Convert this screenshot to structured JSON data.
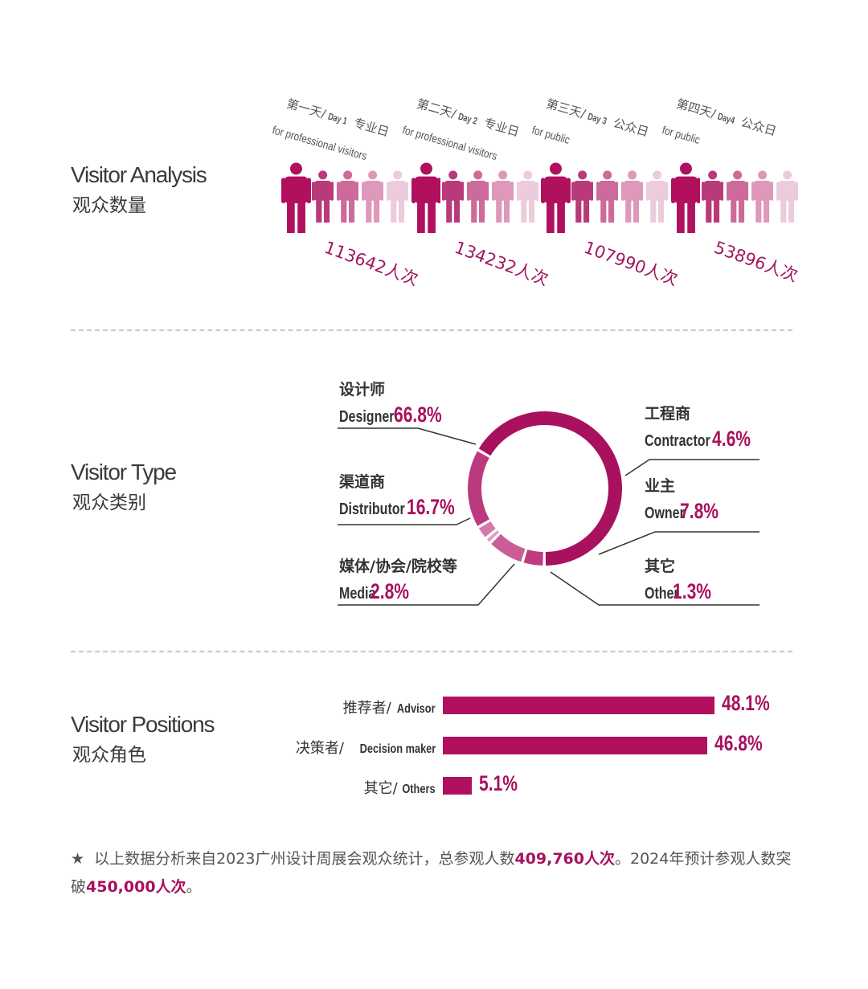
{
  "colors": {
    "accent": "#a8115e",
    "figures": [
      "#b0105e",
      "#b83a7a",
      "#cc6a9a",
      "#dd98ba",
      "#eccbdc"
    ],
    "donut": [
      "#a8115e",
      "#c03a80",
      "#cc5c95",
      "#e0a0c0",
      "#d479ab",
      "#bb3a7d"
    ]
  },
  "visitor_analysis": {
    "title": "Visitor Analysis",
    "subtitle": "观众数量"
  },
  "visitor_type": {
    "title": "Visitor Type",
    "subtitle": "观众类别"
  },
  "visitor_positions": {
    "title": "Visitor Positions",
    "subtitle": "观众角色"
  },
  "chart_data": [
    {
      "type": "pictogram",
      "days": [
        {
          "cn": "第一天/",
          "day": "Day 1",
          "type_cn": "专业日",
          "type_en": "for professional visitors",
          "count": 113642,
          "count_label": "113642人次"
        },
        {
          "cn": "第二天/",
          "day": "Day 2",
          "type_cn": "专业日",
          "type_en": "for professional visitors",
          "count": 134232,
          "count_label": "134232人次"
        },
        {
          "cn": "第三天/",
          "day": "Day 3",
          "type_cn": "公众日",
          "type_en": "for public",
          "count": 107990,
          "count_label": "107990人次"
        },
        {
          "cn": "第四天/",
          "day": "Day4",
          "type_cn": "公众日",
          "type_en": "for public",
          "count": 53896,
          "count_label": "53896人次"
        }
      ]
    },
    {
      "type": "pie",
      "donut": true,
      "slices": [
        {
          "cn": "设计师",
          "en": "Designer",
          "value": 66.8,
          "label": "66.8%"
        },
        {
          "cn": "工程商",
          "en": "Contractor",
          "value": 4.6,
          "label": "4.6%"
        },
        {
          "cn": "业主",
          "en": "Owner",
          "value": 7.8,
          "label": "7.8%"
        },
        {
          "cn": "其它",
          "en": "Other",
          "value": 1.3,
          "label": "1.3%"
        },
        {
          "cn": "媒体/协会/院校等",
          "en": "Media",
          "value": 2.8,
          "label": "2.8%"
        },
        {
          "cn": "渠道商",
          "en": "Distributor",
          "value": 16.7,
          "label": "16.7%"
        }
      ]
    },
    {
      "type": "bar",
      "orientation": "horizontal",
      "categories": [
        {
          "cn": "推荐者/",
          "en": "Advisor"
        },
        {
          "cn": "决策者/",
          "en": "Decision maker"
        },
        {
          "cn": "其它/",
          "en": "Others"
        }
      ],
      "values": [
        48.1,
        46.8,
        5.1
      ],
      "labels": [
        "48.1%",
        "46.8%",
        "5.1%"
      ]
    }
  ],
  "note": {
    "star": "★",
    "t1": "以上数据分析来自2023广州设计周展会观众统计，总参观人数",
    "b1": "409,760人次",
    "t2": "。2024年预计参观人数突破",
    "b2": "450,000人次",
    "t3": "。"
  }
}
